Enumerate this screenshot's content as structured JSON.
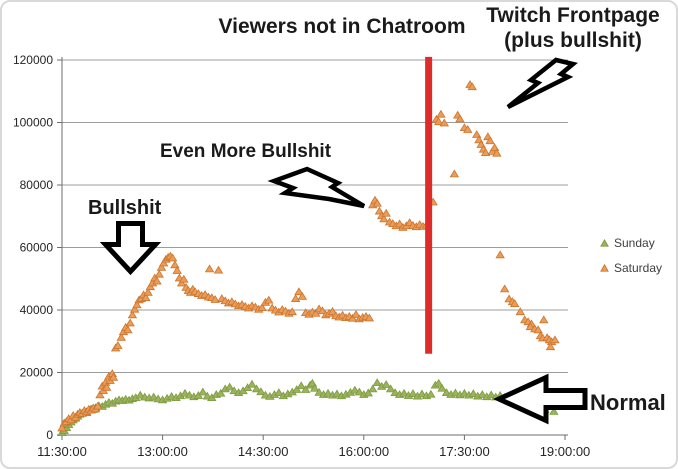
{
  "chart_title": "Viewers not in Chatroom",
  "annotations": {
    "top_right_line1": "Twitch Frontpage",
    "top_right_line2": "(plus bullshit)",
    "even_more_bullshit": "Even More Bullshit",
    "bullshit": "Bullshit",
    "normal": "Normal"
  },
  "legend": {
    "position": "right",
    "items": [
      {
        "label": "Sunday",
        "color": "#9bb45b",
        "edge": "#7d9a42"
      },
      {
        "label": "Saturday",
        "color": "#ed9c58",
        "edge": "#c9752e"
      }
    ]
  },
  "chart_data": {
    "type": "scatter",
    "title": "Viewers not in Chatroom",
    "marker": "triangle",
    "grid": true,
    "legend_position": "right",
    "style": {
      "grid_color": "#9c9c9c",
      "axis_color": "#6e6e6e",
      "tick_color": "#262626"
    },
    "x_axis": {
      "unit": "time of day",
      "range_minutes": [
        0,
        450
      ],
      "tick_minutes": [
        0,
        90,
        180,
        270,
        360,
        450
      ],
      "tick_labels": [
        "11:30:00",
        "13:00:00",
        "14:30:00",
        "16:00:00",
        "17:30:00",
        "19:00:00"
      ]
    },
    "y_axis": {
      "unit": "viewers",
      "range": [
        0,
        120000
      ],
      "ticks": [
        0,
        20000,
        40000,
        60000,
        80000,
        100000,
        120000
      ]
    },
    "red_line": {
      "x_min": 328,
      "value_from": 26000,
      "value_to": 121000,
      "color": "#e02b2b",
      "width": 7
    },
    "series": [
      {
        "name": "Sunday",
        "color": "#9bb45b",
        "edge": "#7d9a42",
        "points": [
          [
            0,
            700
          ],
          [
            2,
            1400
          ],
          [
            4,
            2300
          ],
          [
            6,
            3300
          ],
          [
            8,
            4100
          ],
          [
            10,
            4800
          ],
          [
            12,
            5300
          ],
          [
            14,
            6000
          ],
          [
            16,
            6600
          ],
          [
            18,
            6900
          ],
          [
            20,
            7400
          ],
          [
            22,
            7100
          ],
          [
            24,
            7900
          ],
          [
            26,
            8300
          ],
          [
            28,
            8100
          ],
          [
            30,
            8700
          ],
          [
            33,
            9300
          ],
          [
            36,
            9100
          ],
          [
            39,
            9800
          ],
          [
            42,
            10400
          ],
          [
            45,
            10100
          ],
          [
            48,
            10800
          ],
          [
            51,
            11200
          ],
          [
            54,
            11000
          ],
          [
            57,
            11400
          ],
          [
            60,
            11100
          ],
          [
            63,
            11600
          ],
          [
            66,
            11900
          ],
          [
            70,
            12700
          ],
          [
            74,
            12100
          ],
          [
            78,
            11800
          ],
          [
            82,
            12100
          ],
          [
            86,
            11500
          ],
          [
            90,
            11200
          ],
          [
            94,
            11700
          ],
          [
            98,
            12300
          ],
          [
            102,
            11900
          ],
          [
            106,
            12500
          ],
          [
            110,
            13300
          ],
          [
            114,
            12700
          ],
          [
            118,
            12200
          ],
          [
            122,
            12600
          ],
          [
            126,
            13700
          ],
          [
            130,
            12400
          ],
          [
            134,
            11900
          ],
          [
            138,
            12900
          ],
          [
            142,
            13300
          ],
          [
            146,
            14700
          ],
          [
            150,
            15300
          ],
          [
            154,
            14100
          ],
          [
            158,
            13500
          ],
          [
            162,
            14100
          ],
          [
            166,
            15100
          ],
          [
            170,
            16200
          ],
          [
            174,
            14700
          ],
          [
            178,
            13800
          ],
          [
            182,
            12700
          ],
          [
            186,
            12300
          ],
          [
            190,
            12900
          ],
          [
            194,
            13500
          ],
          [
            198,
            12500
          ],
          [
            202,
            13100
          ],
          [
            206,
            13700
          ],
          [
            210,
            14500
          ],
          [
            214,
            15700
          ],
          [
            218,
            14500
          ],
          [
            222,
            15900
          ],
          [
            224,
            16500
          ],
          [
            226,
            14900
          ],
          [
            230,
            13600
          ],
          [
            234,
            12900
          ],
          [
            238,
            13300
          ],
          [
            242,
            12700
          ],
          [
            246,
            13100
          ],
          [
            250,
            12500
          ],
          [
            254,
            13000
          ],
          [
            258,
            13600
          ],
          [
            262,
            14300
          ],
          [
            266,
            13700
          ],
          [
            270,
            12900
          ],
          [
            274,
            13400
          ],
          [
            278,
            14700
          ],
          [
            282,
            16700
          ],
          [
            286,
            15500
          ],
          [
            290,
            16100
          ],
          [
            294,
            14700
          ],
          [
            298,
            13500
          ],
          [
            302,
            12900
          ],
          [
            306,
            13300
          ],
          [
            310,
            12600
          ],
          [
            314,
            13200
          ],
          [
            318,
            12400
          ],
          [
            322,
            13100
          ],
          [
            326,
            12500
          ],
          [
            330,
            13000
          ],
          [
            334,
            15900
          ],
          [
            337,
            16500
          ],
          [
            340,
            14900
          ],
          [
            344,
            13500
          ],
          [
            348,
            12900
          ],
          [
            352,
            13400
          ],
          [
            356,
            12800
          ],
          [
            360,
            13300
          ],
          [
            364,
            12700
          ],
          [
            368,
            13200
          ],
          [
            372,
            12400
          ],
          [
            376,
            12900
          ],
          [
            380,
            12200
          ],
          [
            384,
            12800
          ],
          [
            388,
            12100
          ],
          [
            392,
            12600
          ],
          [
            396,
            12000
          ],
          [
            400,
            12400
          ],
          [
            404,
            11800
          ],
          [
            408,
            12300
          ],
          [
            412,
            11700
          ],
          [
            416,
            12100
          ],
          [
            420,
            9900
          ],
          [
            424,
            8700
          ],
          [
            428,
            9500
          ],
          [
            432,
            8100
          ],
          [
            436,
            9100
          ],
          [
            440,
            7500
          ]
        ]
      },
      {
        "name": "Saturday",
        "color": "#ed9c58",
        "edge": "#c9752e",
        "points": [
          [
            0,
            2200
          ],
          [
            2,
            3800
          ],
          [
            4,
            4300
          ],
          [
            6,
            5200
          ],
          [
            8,
            4800
          ],
          [
            10,
            6200
          ],
          [
            12,
            5600
          ],
          [
            14,
            6600
          ],
          [
            16,
            7200
          ],
          [
            18,
            6900
          ],
          [
            20,
            7800
          ],
          [
            22,
            7400
          ],
          [
            24,
            8200
          ],
          [
            26,
            7900
          ],
          [
            28,
            8600
          ],
          [
            30,
            8300
          ],
          [
            32,
            9200
          ],
          [
            34,
            12800
          ],
          [
            36,
            15600
          ],
          [
            37,
            14200
          ],
          [
            39,
            16800
          ],
          [
            40,
            15200
          ],
          [
            42,
            18800
          ],
          [
            43,
            17400
          ],
          [
            45,
            19600
          ],
          [
            46,
            18400
          ],
          [
            48,
            27800
          ],
          [
            50,
            28600
          ],
          [
            53,
            31200
          ],
          [
            55,
            33000
          ],
          [
            57,
            34400
          ],
          [
            59,
            33600
          ],
          [
            61,
            35800
          ],
          [
            63,
            38400
          ],
          [
            65,
            40200
          ],
          [
            67,
            41600
          ],
          [
            69,
            43200
          ],
          [
            71,
            43600
          ],
          [
            73,
            44800
          ],
          [
            75,
            43900
          ],
          [
            77,
            45600
          ],
          [
            79,
            47400
          ],
          [
            81,
            48600
          ],
          [
            83,
            50200
          ],
          [
            85,
            49200
          ],
          [
            87,
            51400
          ],
          [
            89,
            53600
          ],
          [
            91,
            55000
          ],
          [
            93,
            56200
          ],
          [
            95,
            56800
          ],
          [
            97,
            57200
          ],
          [
            99,
            56600
          ],
          [
            101,
            54400
          ],
          [
            103,
            52600
          ],
          [
            105,
            50200
          ],
          [
            107,
            48600
          ],
          [
            109,
            49800
          ],
          [
            111,
            47200
          ],
          [
            113,
            46200
          ],
          [
            115,
            45600
          ],
          [
            117,
            46600
          ],
          [
            119,
            45800
          ],
          [
            122,
            45200
          ],
          [
            125,
            44600
          ],
          [
            128,
            44900
          ],
          [
            131,
            44100
          ],
          [
            132,
            53100
          ],
          [
            140,
            52700
          ],
          [
            134,
            43900
          ],
          [
            137,
            43300
          ],
          [
            143,
            43600
          ],
          [
            146,
            42900
          ],
          [
            149,
            42200
          ],
          [
            152,
            42600
          ],
          [
            155,
            41900
          ],
          [
            158,
            41300
          ],
          [
            161,
            41700
          ],
          [
            164,
            41100
          ],
          [
            167,
            40600
          ],
          [
            170,
            41300
          ],
          [
            173,
            40900
          ],
          [
            176,
            40200
          ],
          [
            179,
            40700
          ],
          [
            182,
            42400
          ],
          [
            185,
            43100
          ],
          [
            188,
            40600
          ],
          [
            191,
            39900
          ],
          [
            194,
            39300
          ],
          [
            197,
            40100
          ],
          [
            200,
            39600
          ],
          [
            203,
            38900
          ],
          [
            206,
            39400
          ],
          [
            209,
            43600
          ],
          [
            212,
            45800
          ],
          [
            215,
            44300
          ],
          [
            218,
            39100
          ],
          [
            221,
            38600
          ],
          [
            224,
            39300
          ],
          [
            227,
            38900
          ],
          [
            230,
            40300
          ],
          [
            233,
            39700
          ],
          [
            236,
            38400
          ],
          [
            239,
            38900
          ],
          [
            242,
            39500
          ],
          [
            245,
            38100
          ],
          [
            248,
            37700
          ],
          [
            251,
            38300
          ],
          [
            254,
            37500
          ],
          [
            257,
            37900
          ],
          [
            260,
            37300
          ],
          [
            263,
            38500
          ],
          [
            266,
            37100
          ],
          [
            269,
            37600
          ],
          [
            272,
            37900
          ],
          [
            275,
            37400
          ],
          [
            278,
            73600
          ],
          [
            280,
            75100
          ],
          [
            282,
            74100
          ],
          [
            284,
            71600
          ],
          [
            286,
            70100
          ],
          [
            288,
            69100
          ],
          [
            290,
            70900
          ],
          [
            293,
            68100
          ],
          [
            296,
            67600
          ],
          [
            299,
            66900
          ],
          [
            302,
            67500
          ],
          [
            305,
            66400
          ],
          [
            308,
            66900
          ],
          [
            311,
            67900
          ],
          [
            314,
            67000
          ],
          [
            317,
            66600
          ],
          [
            320,
            67300
          ],
          [
            323,
            66700
          ],
          [
            326,
            67100
          ],
          [
            332,
            74500
          ],
          [
            335,
            101000
          ],
          [
            337,
            100200
          ],
          [
            339,
            102600
          ],
          [
            342,
            99800
          ],
          [
            351,
            83500
          ],
          [
            354,
            102300
          ],
          [
            356,
            101100
          ],
          [
            360,
            98300
          ],
          [
            363,
            97700
          ],
          [
            365,
            112100
          ],
          [
            367,
            111400
          ],
          [
            371,
            96100
          ],
          [
            373,
            94400
          ],
          [
            375,
            92900
          ],
          [
            377,
            91400
          ],
          [
            379,
            90300
          ],
          [
            381,
            95400
          ],
          [
            383,
            94100
          ],
          [
            385,
            90700
          ],
          [
            387,
            91900
          ],
          [
            389,
            90100
          ],
          [
            392,
            57600
          ],
          [
            396,
            46700
          ],
          [
            400,
            43500
          ],
          [
            403,
            42600
          ],
          [
            405,
            42000
          ],
          [
            410,
            39400
          ],
          [
            414,
            36800
          ],
          [
            417,
            36200
          ],
          [
            420,
            35500
          ],
          [
            419,
            34600
          ],
          [
            423,
            33900
          ],
          [
            426,
            33600
          ],
          [
            431,
            36800
          ],
          [
            428,
            31700
          ],
          [
            430,
            31000
          ],
          [
            434,
            31100
          ],
          [
            436,
            30400
          ],
          [
            438,
            29800
          ],
          [
            441,
            30400
          ],
          [
            437,
            28200
          ]
        ]
      }
    ]
  }
}
